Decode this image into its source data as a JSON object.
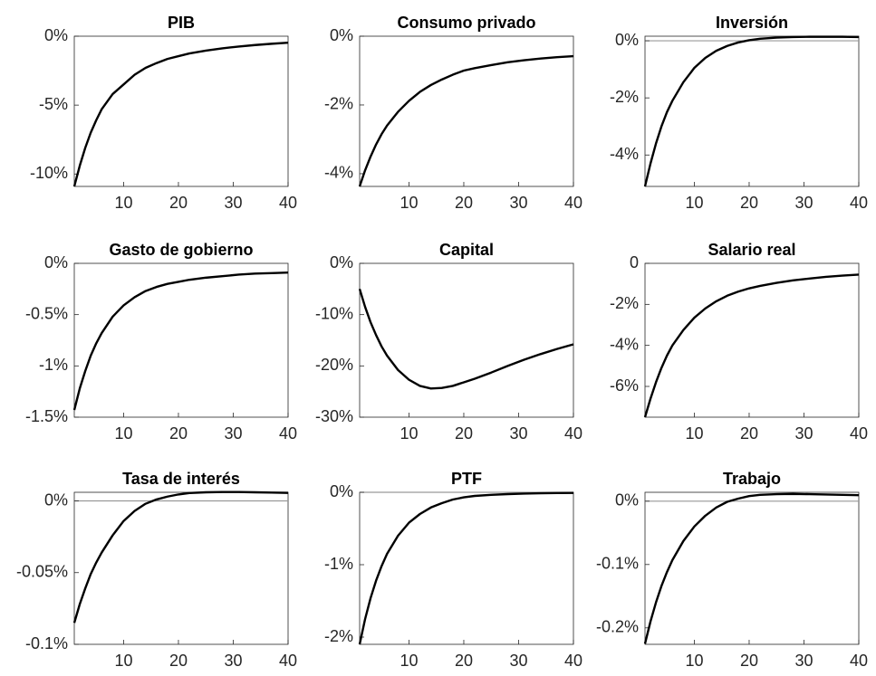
{
  "chart_data": [
    {
      "type": "line",
      "title": "PIB",
      "x": [
        1,
        2,
        3,
        4,
        5,
        6,
        8,
        10,
        12,
        14,
        16,
        18,
        20,
        22,
        25,
        28,
        31,
        34,
        37,
        40
      ],
      "values": [
        -10.9,
        -9.4,
        -8.1,
        -7.0,
        -6.1,
        -5.3,
        -4.2,
        -3.5,
        -2.8,
        -2.3,
        -1.95,
        -1.65,
        -1.45,
        -1.25,
        -1.05,
        -0.88,
        -0.75,
        -0.64,
        -0.55,
        -0.47
      ],
      "color": "#000000",
      "xlim": [
        1,
        40
      ],
      "xticks": [
        10,
        20,
        30,
        40
      ],
      "ylim": [
        -10.9,
        0
      ],
      "yticks": [
        {
          "value": -10,
          "label": "-10%"
        },
        {
          "value": -5,
          "label": "-5%"
        },
        {
          "value": 0,
          "label": "0%"
        }
      ],
      "zero_line": false
    },
    {
      "type": "line",
      "title": "Consumo privado",
      "x": [
        1,
        2,
        3,
        4,
        5,
        6,
        8,
        10,
        12,
        14,
        16,
        18,
        20,
        22,
        25,
        28,
        31,
        34,
        37,
        40
      ],
      "values": [
        -4.37,
        -3.9,
        -3.5,
        -3.15,
        -2.85,
        -2.6,
        -2.2,
        -1.88,
        -1.62,
        -1.42,
        -1.26,
        -1.12,
        -1.0,
        -0.93,
        -0.84,
        -0.76,
        -0.7,
        -0.65,
        -0.61,
        -0.58
      ],
      "color": "#000000",
      "xlim": [
        1,
        40
      ],
      "xticks": [
        10,
        20,
        30,
        40
      ],
      "ylim": [
        -4.37,
        0
      ],
      "yticks": [
        {
          "value": -4,
          "label": "-4%"
        },
        {
          "value": -2,
          "label": "-2%"
        },
        {
          "value": 0,
          "label": "0%"
        }
      ],
      "zero_line": false
    },
    {
      "type": "line",
      "title": "Inversión",
      "x": [
        1,
        2,
        3,
        4,
        5,
        6,
        8,
        10,
        12,
        14,
        16,
        18,
        20,
        22,
        25,
        28,
        31,
        34,
        37,
        40
      ],
      "values": [
        -5.1,
        -4.3,
        -3.6,
        -3.0,
        -2.5,
        -2.1,
        -1.45,
        -0.95,
        -0.6,
        -0.35,
        -0.18,
        -0.06,
        0.02,
        0.07,
        0.11,
        0.13,
        0.14,
        0.14,
        0.14,
        0.13
      ],
      "color": "#000000",
      "xlim": [
        1,
        40
      ],
      "xticks": [
        10,
        20,
        30,
        40
      ],
      "ylim": [
        -5.1,
        0.16
      ],
      "yticks": [
        {
          "value": -4,
          "label": "-4%"
        },
        {
          "value": -2,
          "label": "-2%"
        },
        {
          "value": 0,
          "label": "0%"
        }
      ],
      "zero_line": true
    },
    {
      "type": "line",
      "title": "Gasto de gobierno",
      "x": [
        1,
        2,
        3,
        4,
        5,
        6,
        8,
        10,
        12,
        14,
        16,
        18,
        20,
        22,
        25,
        28,
        31,
        34,
        37,
        40
      ],
      "values": [
        -1.43,
        -1.22,
        -1.05,
        -0.9,
        -0.78,
        -0.68,
        -0.52,
        -0.41,
        -0.33,
        -0.27,
        -0.23,
        -0.2,
        -0.18,
        -0.16,
        -0.14,
        -0.125,
        -0.11,
        -0.1,
        -0.095,
        -0.09
      ],
      "color": "#000000",
      "xlim": [
        1,
        40
      ],
      "xticks": [
        10,
        20,
        30,
        40
      ],
      "ylim": [
        -1.5,
        0
      ],
      "yticks": [
        {
          "value": -1.5,
          "label": "-1.5%"
        },
        {
          "value": -1,
          "label": "-1%"
        },
        {
          "value": -0.5,
          "label": "-0.5%"
        },
        {
          "value": 0,
          "label": "0%"
        }
      ],
      "zero_line": false
    },
    {
      "type": "line",
      "title": "Capital",
      "x": [
        1,
        2,
        3,
        4,
        5,
        6,
        8,
        10,
        12,
        14,
        16,
        18,
        20,
        22,
        25,
        28,
        31,
        34,
        37,
        40
      ],
      "values": [
        -5,
        -8.5,
        -11.5,
        -14,
        -16.2,
        -18,
        -20.8,
        -22.7,
        -23.9,
        -24.4,
        -24.3,
        -23.9,
        -23.2,
        -22.5,
        -21.3,
        -20.0,
        -18.8,
        -17.7,
        -16.7,
        -15.8
      ],
      "color": "#000000",
      "xlim": [
        1,
        40
      ],
      "xticks": [
        10,
        20,
        30,
        40
      ],
      "ylim": [
        -30,
        0
      ],
      "yticks": [
        {
          "value": -30,
          "label": "-30%"
        },
        {
          "value": -20,
          "label": "-20%"
        },
        {
          "value": -10,
          "label": "-10%"
        },
        {
          "value": 0,
          "label": "0%"
        }
      ],
      "zero_line": false
    },
    {
      "type": "line",
      "title": "Salario real",
      "x": [
        1,
        2,
        3,
        4,
        5,
        6,
        8,
        10,
        12,
        14,
        16,
        18,
        20,
        22,
        25,
        28,
        31,
        34,
        37,
        40
      ],
      "values": [
        -7.5,
        -6.6,
        -5.8,
        -5.1,
        -4.5,
        -4.0,
        -3.25,
        -2.65,
        -2.2,
        -1.85,
        -1.58,
        -1.38,
        -1.22,
        -1.1,
        -0.95,
        -0.83,
        -0.74,
        -0.66,
        -0.6,
        -0.55
      ],
      "color": "#000000",
      "xlim": [
        1,
        40
      ],
      "xticks": [
        10,
        20,
        30,
        40
      ],
      "ylim": [
        -7.5,
        0
      ],
      "yticks": [
        {
          "value": -6,
          "label": "-6%"
        },
        {
          "value": -4,
          "label": "-4%"
        },
        {
          "value": -2,
          "label": "-2%"
        },
        0
      ],
      "zero_line": false
    },
    {
      "type": "line",
      "title": "Tasa de interés",
      "x": [
        1,
        2,
        3,
        4,
        5,
        6,
        8,
        10,
        12,
        14,
        16,
        18,
        20,
        22,
        25,
        28,
        31,
        34,
        37,
        40
      ],
      "values": [
        -0.085,
        -0.072,
        -0.061,
        -0.051,
        -0.043,
        -0.036,
        -0.024,
        -0.014,
        -0.007,
        -0.002,
        0.001,
        0.003,
        0.0045,
        0.0055,
        0.006,
        0.0062,
        0.0062,
        0.006,
        0.0058,
        0.0056
      ],
      "color": "#000000",
      "xlim": [
        1,
        40
      ],
      "xticks": [
        10,
        20,
        30,
        40
      ],
      "ylim": [
        -0.1,
        0.006
      ],
      "yticks": [
        {
          "value": -0.1,
          "label": "-0.1%"
        },
        {
          "value": -0.05,
          "label": "-0.05%"
        },
        {
          "value": 0,
          "label": "0%"
        }
      ],
      "zero_line": true
    },
    {
      "type": "line",
      "title": "PTF",
      "x": [
        1,
        2,
        3,
        4,
        5,
        6,
        8,
        10,
        12,
        14,
        16,
        18,
        20,
        22,
        25,
        28,
        31,
        34,
        37,
        40
      ],
      "values": [
        -2.1,
        -1.75,
        -1.46,
        -1.22,
        -1.02,
        -0.85,
        -0.6,
        -0.42,
        -0.3,
        -0.21,
        -0.15,
        -0.1,
        -0.07,
        -0.05,
        -0.035,
        -0.025,
        -0.018,
        -0.013,
        -0.01,
        -0.008
      ],
      "color": "#000000",
      "xlim": [
        1,
        40
      ],
      "xticks": [
        10,
        20,
        30,
        40
      ],
      "ylim": [
        -2.1,
        0
      ],
      "yticks": [
        {
          "value": -2,
          "label": "-2%"
        },
        {
          "value": -1,
          "label": "-1%"
        },
        {
          "value": 0,
          "label": "0%"
        }
      ],
      "zero_line": true
    },
    {
      "type": "line",
      "title": "Trabajo",
      "x": [
        1,
        2,
        3,
        4,
        5,
        6,
        8,
        10,
        12,
        14,
        16,
        18,
        20,
        22,
        25,
        28,
        31,
        34,
        37,
        40
      ],
      "values": [
        -0.225,
        -0.19,
        -0.16,
        -0.134,
        -0.112,
        -0.093,
        -0.063,
        -0.04,
        -0.023,
        -0.01,
        -0.001,
        0.004,
        0.008,
        0.01,
        0.011,
        0.0115,
        0.011,
        0.0105,
        0.01,
        0.0095
      ],
      "color": "#000000",
      "xlim": [
        1,
        40
      ],
      "xticks": [
        10,
        20,
        30,
        40
      ],
      "ylim": [
        -0.226,
        0.014
      ],
      "yticks": [
        {
          "value": -0.2,
          "label": "-0.2%"
        },
        {
          "value": -0.1,
          "label": "-0.1%"
        },
        {
          "value": 0,
          "label": "0%"
        }
      ],
      "zero_line": true
    }
  ]
}
